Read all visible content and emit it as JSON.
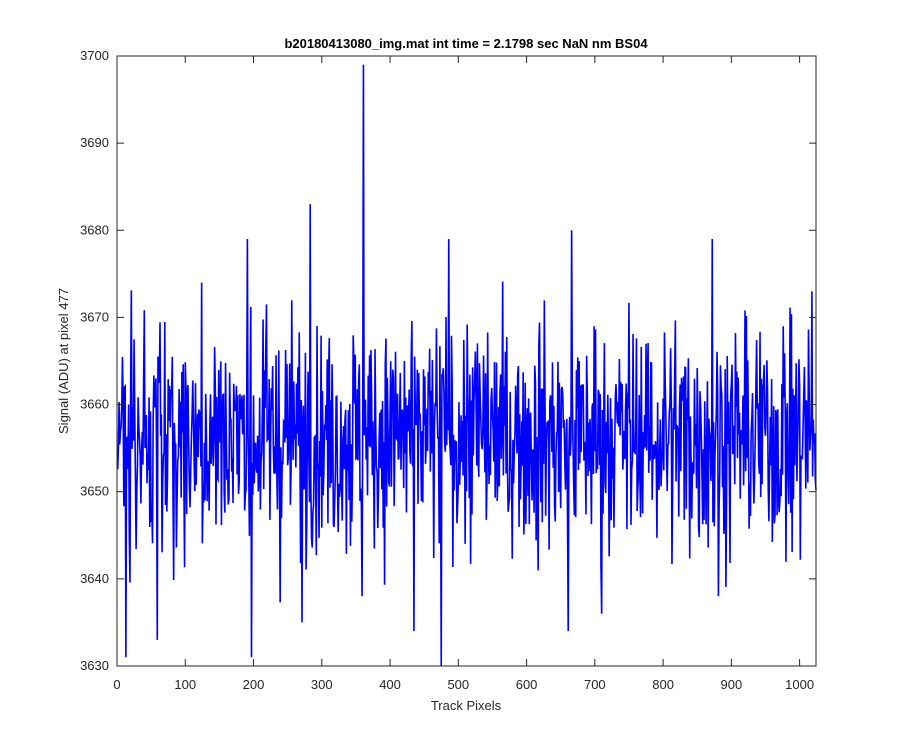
{
  "chart_data": {
    "type": "line",
    "title": "b20180413080_img.mat int time = 2.1798 sec  NaN nm BS04",
    "xlabel": "Track Pixels",
    "ylabel": "Signal (ADU) at pixel 477",
    "xlim": [
      0,
      1024
    ],
    "ylim": [
      3630,
      3700
    ],
    "xticks": [
      "0",
      "100",
      "200",
      "300",
      "400",
      "500",
      "600",
      "700",
      "800",
      "900",
      "1000"
    ],
    "yticks": [
      "3630",
      "3640",
      "3650",
      "3660",
      "3670",
      "3680",
      "3690",
      "3700"
    ],
    "grid": false,
    "line_color": "#0000ff",
    "series": [
      {
        "mean": 3656.5,
        "range": [
          3630,
          3699
        ],
        "n_points": 1024,
        "spikes": [
          {
            "x": 12,
            "y": 3631
          },
          {
            "x": 58,
            "y": 3633
          },
          {
            "x": 123,
            "y": 3674
          },
          {
            "x": 190,
            "y": 3679
          },
          {
            "x": 196,
            "y": 3631
          },
          {
            "x": 270,
            "y": 3635
          },
          {
            "x": 282,
            "y": 3683
          },
          {
            "x": 360,
            "y": 3699
          },
          {
            "x": 358,
            "y": 3638
          },
          {
            "x": 434,
            "y": 3634
          },
          {
            "x": 474,
            "y": 3630
          },
          {
            "x": 485,
            "y": 3679
          },
          {
            "x": 665,
            "y": 3680
          },
          {
            "x": 660,
            "y": 3634
          },
          {
            "x": 709,
            "y": 3636
          },
          {
            "x": 871,
            "y": 3679
          },
          {
            "x": 880,
            "y": 3638
          },
          {
            "x": 1017,
            "y": 3673
          }
        ]
      }
    ]
  }
}
